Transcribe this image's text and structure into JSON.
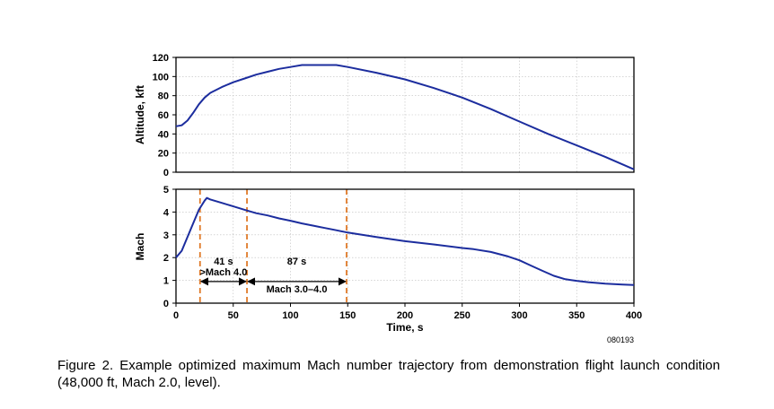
{
  "chart_data": [
    {
      "type": "line",
      "title": "",
      "xlabel": "",
      "ylabel": "Altitude, kft",
      "xlim": [
        0,
        400
      ],
      "ylim": [
        0,
        120
      ],
      "yticks": [
        "0",
        "20",
        "40",
        "60",
        "80",
        "100",
        "120"
      ],
      "grid": true,
      "line_color": "#1c2d9e",
      "series": [
        {
          "x": [
            0,
            5,
            10,
            15,
            20,
            25,
            30,
            40,
            50,
            60,
            70,
            80,
            90,
            100,
            110,
            120,
            130,
            140,
            150,
            175,
            200,
            225,
            250,
            275,
            300,
            325,
            350,
            375,
            400
          ],
          "y": [
            48,
            49,
            54,
            62,
            71,
            78,
            83,
            89,
            94,
            98,
            102,
            105,
            108,
            110,
            112,
            112,
            112,
            112,
            110,
            104,
            97,
            88,
            78,
            66,
            53,
            40,
            28,
            16,
            3
          ]
        }
      ]
    },
    {
      "type": "line",
      "title": "",
      "xlabel": "Time, s",
      "ylabel": "Mach",
      "xlim": [
        0,
        400
      ],
      "ylim": [
        0,
        5
      ],
      "xticks": [
        "0",
        "50",
        "100",
        "150",
        "200",
        "250",
        "300",
        "350",
        "400"
      ],
      "yticks": [
        "0",
        "1",
        "2",
        "3",
        "4",
        "5"
      ],
      "grid": true,
      "line_color": "#1c2d9e",
      "marker_color": "#e07b2a",
      "series": [
        {
          "x": [
            0,
            5,
            10,
            15,
            20,
            25,
            27,
            30,
            40,
            50,
            60,
            70,
            80,
            90,
            100,
            110,
            120,
            130,
            140,
            150,
            175,
            200,
            225,
            250,
            260,
            275,
            290,
            300,
            310,
            320,
            330,
            340,
            350,
            360,
            375,
            390,
            400
          ],
          "y": [
            2.0,
            2.3,
            2.9,
            3.5,
            4.1,
            4.5,
            4.62,
            4.55,
            4.4,
            4.25,
            4.1,
            3.95,
            3.85,
            3.72,
            3.62,
            3.5,
            3.4,
            3.3,
            3.2,
            3.1,
            2.9,
            2.72,
            2.58,
            2.42,
            2.37,
            2.25,
            2.05,
            1.88,
            1.65,
            1.42,
            1.2,
            1.05,
            0.98,
            0.92,
            0.86,
            0.82,
            0.8
          ]
        }
      ],
      "vlines": [
        21,
        62,
        149
      ],
      "annotations": [
        {
          "line1": "41 s",
          "line2": ">Mach 4.0",
          "x_start": 21,
          "x_end": 62,
          "arrow_y": 0.95
        },
        {
          "line1": "87 s",
          "line2": "Mach 3.0–4.0",
          "x_start": 62,
          "x_end": 149,
          "arrow_y": 0.95
        }
      ]
    }
  ],
  "figure_id": "080193",
  "caption": "Figure 2. Example optimized maximum Mach number trajectory from demonstration flight launch condition (48,000 ft, Mach 2.0, level)."
}
